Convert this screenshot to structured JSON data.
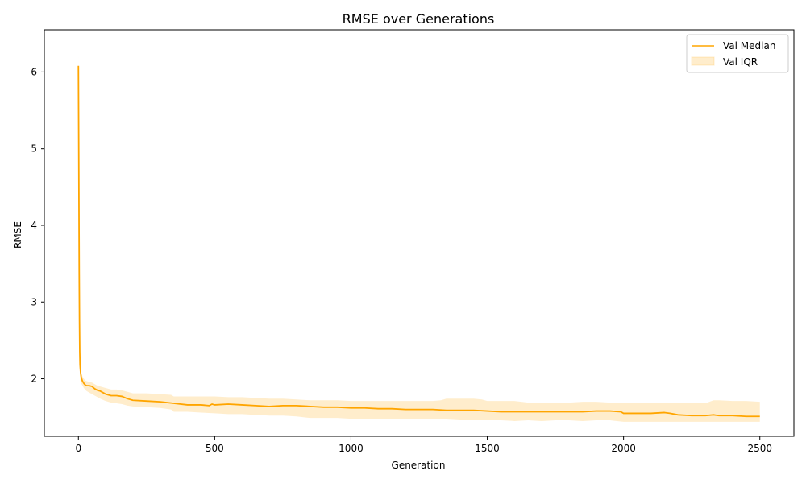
{
  "chart_data": {
    "type": "line",
    "title": "RMSE over Generations",
    "xlabel": "Generation",
    "ylabel": "RMSE",
    "xlim": [
      -125,
      2625
    ],
    "ylim": [
      1.25,
      6.55
    ],
    "x_ticks": [
      0,
      500,
      1000,
      1500,
      2000,
      2500
    ],
    "y_ticks": [
      2,
      3,
      4,
      5,
      6
    ],
    "grid": false,
    "legend_position": "top-right",
    "colors": {
      "line": "#ffa500",
      "band": "#ffa500"
    },
    "series": [
      {
        "name": "Val Median",
        "kind": "line",
        "x": [
          0,
          1,
          2,
          3,
          4,
          5,
          6,
          8,
          10,
          12,
          15,
          20,
          25,
          30,
          40,
          50,
          60,
          70,
          80,
          100,
          120,
          140,
          160,
          180,
          200,
          250,
          300,
          350,
          400,
          450,
          480,
          490,
          500,
          550,
          600,
          650,
          700,
          750,
          800,
          850,
          900,
          950,
          1000,
          1050,
          1100,
          1150,
          1200,
          1250,
          1300,
          1350,
          1400,
          1450,
          1500,
          1550,
          1600,
          1650,
          1700,
          1750,
          1800,
          1850,
          1900,
          1950,
          1990,
          2000,
          2050,
          2100,
          2150,
          2170,
          2200,
          2250,
          2300,
          2330,
          2350,
          2400,
          2450,
          2500
        ],
        "y": [
          6.08,
          5.2,
          4.3,
          3.4,
          2.75,
          2.35,
          2.18,
          2.08,
          2.03,
          2.0,
          1.97,
          1.94,
          1.92,
          1.91,
          1.91,
          1.9,
          1.87,
          1.85,
          1.84,
          1.8,
          1.78,
          1.78,
          1.77,
          1.74,
          1.72,
          1.71,
          1.7,
          1.68,
          1.66,
          1.66,
          1.65,
          1.67,
          1.66,
          1.67,
          1.66,
          1.65,
          1.64,
          1.65,
          1.65,
          1.64,
          1.63,
          1.63,
          1.62,
          1.62,
          1.61,
          1.61,
          1.6,
          1.6,
          1.6,
          1.59,
          1.59,
          1.59,
          1.58,
          1.57,
          1.57,
          1.57,
          1.57,
          1.57,
          1.57,
          1.57,
          1.58,
          1.58,
          1.57,
          1.55,
          1.55,
          1.55,
          1.56,
          1.55,
          1.53,
          1.52,
          1.52,
          1.53,
          1.52,
          1.52,
          1.51,
          1.51
        ]
      },
      {
        "name": "Val IQR",
        "kind": "band",
        "x": [
          0,
          1,
          2,
          3,
          4,
          5,
          6,
          8,
          10,
          12,
          15,
          20,
          25,
          30,
          40,
          50,
          60,
          70,
          80,
          100,
          120,
          140,
          160,
          180,
          200,
          250,
          300,
          340,
          350,
          400,
          450,
          500,
          550,
          600,
          650,
          700,
          750,
          800,
          850,
          900,
          950,
          1000,
          1050,
          1100,
          1150,
          1200,
          1250,
          1300,
          1330,
          1350,
          1400,
          1450,
          1480,
          1500,
          1550,
          1600,
          1650,
          1700,
          1750,
          1800,
          1850,
          1900,
          1950,
          2000,
          2050,
          2100,
          2150,
          2200,
          2250,
          2300,
          2330,
          2350,
          2400,
          2450,
          2500
        ],
        "y_low": [
          5.95,
          5.0,
          4.1,
          3.2,
          2.55,
          2.2,
          2.05,
          1.98,
          1.95,
          1.93,
          1.91,
          1.88,
          1.86,
          1.84,
          1.82,
          1.8,
          1.78,
          1.76,
          1.74,
          1.71,
          1.69,
          1.68,
          1.67,
          1.65,
          1.64,
          1.63,
          1.62,
          1.6,
          1.57,
          1.57,
          1.56,
          1.55,
          1.54,
          1.54,
          1.53,
          1.52,
          1.52,
          1.51,
          1.49,
          1.49,
          1.49,
          1.48,
          1.48,
          1.48,
          1.48,
          1.48,
          1.48,
          1.48,
          1.47,
          1.47,
          1.46,
          1.46,
          1.46,
          1.46,
          1.46,
          1.45,
          1.46,
          1.45,
          1.46,
          1.46,
          1.45,
          1.46,
          1.46,
          1.44,
          1.44,
          1.44,
          1.44,
          1.44,
          1.44,
          1.44,
          1.44,
          1.44,
          1.44,
          1.44,
          1.44
        ],
        "y_high": [
          6.22,
          5.35,
          4.45,
          3.55,
          2.9,
          2.45,
          2.28,
          2.16,
          2.1,
          2.06,
          2.03,
          2.0,
          1.98,
          1.97,
          1.96,
          1.95,
          1.93,
          1.91,
          1.9,
          1.88,
          1.86,
          1.86,
          1.85,
          1.83,
          1.81,
          1.81,
          1.8,
          1.79,
          1.77,
          1.77,
          1.77,
          1.77,
          1.76,
          1.76,
          1.75,
          1.74,
          1.74,
          1.73,
          1.72,
          1.72,
          1.72,
          1.71,
          1.71,
          1.71,
          1.71,
          1.71,
          1.71,
          1.71,
          1.72,
          1.74,
          1.74,
          1.74,
          1.73,
          1.71,
          1.71,
          1.71,
          1.69,
          1.69,
          1.69,
          1.69,
          1.7,
          1.7,
          1.69,
          1.68,
          1.68,
          1.68,
          1.68,
          1.68,
          1.68,
          1.68,
          1.72,
          1.72,
          1.71,
          1.71,
          1.7
        ]
      }
    ]
  }
}
